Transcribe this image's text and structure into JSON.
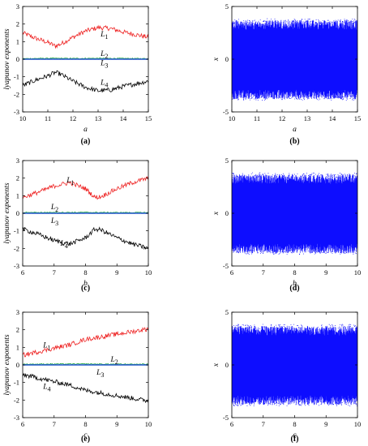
{
  "chart_data": [
    {
      "type": "line",
      "caption": "(a)",
      "xlabel": "a",
      "ylabel": "lyapunov exponents",
      "xlim": [
        10,
        15
      ],
      "ylim": [
        -3,
        3
      ],
      "xticks": [
        "10",
        "11",
        "12",
        "13",
        "14",
        "15"
      ],
      "yticks": [
        "-3",
        "-2",
        "-1",
        "0",
        "1",
        "2",
        "3"
      ],
      "annotations": [
        {
          "text": "L",
          "sub": "1",
          "x": 13.1,
          "y": 1.3
        },
        {
          "text": "L",
          "sub": "2",
          "x": 13.1,
          "y": 0.18
        },
        {
          "text": "L",
          "sub": "3",
          "x": 13.1,
          "y": -0.35
        },
        {
          "text": "L",
          "sub": "4",
          "x": 13.1,
          "y": -1.45
        }
      ],
      "series": [
        {
          "color": "#ee2222",
          "x": [
            10,
            10.5,
            11,
            11.3,
            11.5,
            12,
            12.5,
            13,
            13.5,
            14,
            14.5,
            15
          ],
          "values": [
            1.5,
            1.2,
            0.95,
            0.75,
            0.85,
            1.25,
            1.6,
            1.8,
            1.75,
            1.55,
            1.4,
            1.25
          ]
        },
        {
          "color": "#22aa44",
          "x": [
            10,
            11,
            12,
            13,
            14,
            15
          ],
          "values": [
            0.03,
            0.05,
            0.04,
            0.05,
            0.04,
            0.03
          ]
        },
        {
          "color": "#2255cc",
          "x": [
            10,
            15
          ],
          "values": [
            0,
            0
          ]
        },
        {
          "color": "#000000",
          "x": [
            10,
            10.5,
            11,
            11.3,
            11.5,
            12,
            12.5,
            13,
            13.5,
            14,
            14.5,
            15
          ],
          "values": [
            -1.5,
            -1.2,
            -0.95,
            -0.75,
            -0.85,
            -1.25,
            -1.6,
            -1.8,
            -1.75,
            -1.55,
            -1.4,
            -1.25
          ]
        }
      ]
    },
    {
      "type": "line",
      "caption": "(b)",
      "xlabel": "a",
      "ylabel": "x",
      "xlim": [
        10,
        15
      ],
      "ylim": [
        -5,
        5
      ],
      "xticks": [
        "10",
        "11",
        "12",
        "13",
        "14",
        "15"
      ],
      "yticks": [
        "-5",
        "0",
        "5"
      ],
      "series": [
        {
          "color": "#0000ff",
          "style": "dense oscillation",
          "upper": 3.7,
          "lower": -3.8
        }
      ]
    },
    {
      "type": "line",
      "caption": "(c)",
      "xlabel": "b",
      "ylabel": "lyapunov exponents",
      "xlim": [
        6,
        10
      ],
      "ylim": [
        -3,
        3
      ],
      "xticks": [
        "6",
        "7",
        "8",
        "9",
        "10"
      ],
      "yticks": [
        "-3",
        "-2",
        "-1",
        "0",
        "1",
        "2",
        "3"
      ],
      "annotations": [
        {
          "text": "L",
          "sub": "1",
          "x": 7.4,
          "y": 1.75
        },
        {
          "text": "L",
          "sub": "2",
          "x": 6.9,
          "y": 0.22
        },
        {
          "text": "L",
          "sub": "3",
          "x": 6.9,
          "y": -0.55
        },
        {
          "text": "L",
          "sub": "4",
          "x": 7.2,
          "y": -1.85
        }
      ],
      "series": [
        {
          "color": "#ee2222",
          "x": [
            6,
            6.5,
            7,
            7.5,
            8,
            8.3,
            8.5,
            9,
            9.5,
            10
          ],
          "values": [
            0.9,
            1.2,
            1.55,
            1.75,
            1.4,
            0.9,
            0.95,
            1.4,
            1.75,
            2.0
          ]
        },
        {
          "color": "#22aa44",
          "x": [
            6,
            7,
            8,
            9,
            10
          ],
          "values": [
            0.04,
            0.05,
            0.05,
            0.04,
            0.04
          ]
        },
        {
          "color": "#2255cc",
          "x": [
            6,
            10
          ],
          "values": [
            0,
            0
          ]
        },
        {
          "color": "#000000",
          "x": [
            6,
            6.5,
            7,
            7.5,
            8,
            8.3,
            8.5,
            9,
            9.5,
            10
          ],
          "values": [
            -0.9,
            -1.2,
            -1.55,
            -1.75,
            -1.4,
            -0.9,
            -0.95,
            -1.4,
            -1.75,
            -2.0
          ]
        }
      ]
    },
    {
      "type": "line",
      "caption": "(d)",
      "xlabel": "b",
      "ylabel": "x",
      "xlim": [
        6,
        10
      ],
      "ylim": [
        -5,
        5
      ],
      "xticks": [
        "6",
        "7",
        "8",
        "9",
        "10"
      ],
      "yticks": [
        "-5",
        "0",
        "5"
      ],
      "series": [
        {
          "color": "#0000ff",
          "style": "dense oscillation",
          "upper": 3.7,
          "lower": -3.8
        }
      ]
    },
    {
      "type": "line",
      "caption": "(e)",
      "xlabel": "c",
      "ylabel": "lyapunov exponents",
      "xlim": [
        6,
        10
      ],
      "ylim": [
        -3,
        3
      ],
      "xticks": [
        "6",
        "7",
        "8",
        "9",
        "10"
      ],
      "yticks": [
        "-3",
        "-2",
        "-1",
        "0",
        "1",
        "2",
        "3"
      ],
      "annotations": [
        {
          "text": "L",
          "sub": "1",
          "x": 6.65,
          "y": 1.0
        },
        {
          "text": "L",
          "sub": "2",
          "x": 8.8,
          "y": 0.18
        },
        {
          "text": "L",
          "sub": "3",
          "x": 8.35,
          "y": -0.55
        },
        {
          "text": "L",
          "sub": "4",
          "x": 6.65,
          "y": -1.35
        }
      ],
      "series": [
        {
          "color": "#ee2222",
          "x": [
            6,
            6.5,
            7,
            7.5,
            8,
            8.5,
            9,
            9.5,
            10
          ],
          "values": [
            0.55,
            0.75,
            0.95,
            1.15,
            1.45,
            1.6,
            1.75,
            1.9,
            2.05
          ]
        },
        {
          "color": "#22aa44",
          "x": [
            6,
            7,
            8,
            9,
            10
          ],
          "values": [
            0.04,
            0.05,
            0.05,
            0.04,
            0.04
          ]
        },
        {
          "color": "#2255cc",
          "x": [
            6,
            10
          ],
          "values": [
            0,
            0
          ]
        },
        {
          "color": "#000000",
          "x": [
            6,
            6.5,
            7,
            7.5,
            8,
            8.5,
            9,
            9.5,
            10
          ],
          "values": [
            -0.55,
            -0.75,
            -0.95,
            -1.15,
            -1.45,
            -1.6,
            -1.75,
            -1.9,
            -2.05
          ]
        }
      ]
    },
    {
      "type": "line",
      "caption": "(f)",
      "xlabel": "c",
      "ylabel": "x",
      "xlim": [
        6,
        10
      ],
      "ylim": [
        -5,
        5
      ],
      "xticks": [
        "6",
        "7",
        "8",
        "9",
        "10"
      ],
      "yticks": [
        "-5",
        "0",
        "5"
      ],
      "series": [
        {
          "color": "#0000ff",
          "style": "dense oscillation",
          "upper": 3.7,
          "lower": -3.8
        }
      ]
    }
  ]
}
